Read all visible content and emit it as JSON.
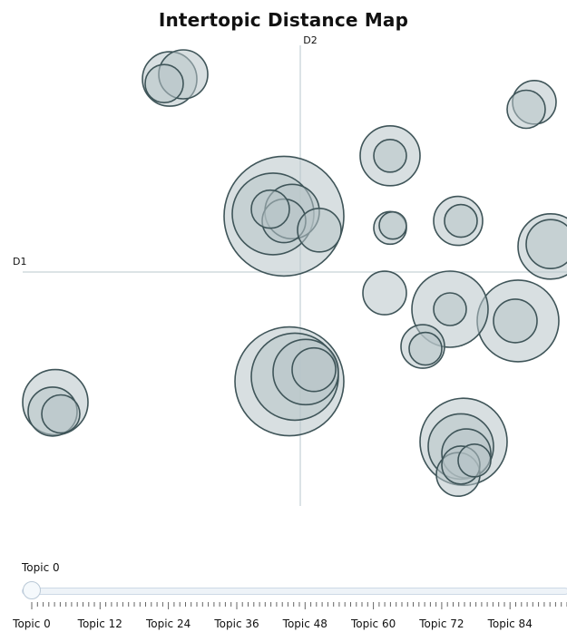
{
  "chart_data": {
    "type": "scatter",
    "title": "Intertopic Distance Map",
    "xlabel": "D1",
    "ylabel": "D2",
    "xlim": [
      -10,
      10
    ],
    "ylim": [
      -10,
      10
    ],
    "points": [
      {
        "x": -4.8,
        "y": 8.3,
        "r": 1.0
      },
      {
        "x": -4.3,
        "y": 8.5,
        "r": 0.9
      },
      {
        "x": -5.0,
        "y": 8.1,
        "r": 0.7
      },
      {
        "x": 8.6,
        "y": 7.3,
        "r": 0.8
      },
      {
        "x": 8.3,
        "y": 7.0,
        "r": 0.7
      },
      {
        "x": 3.3,
        "y": 5.0,
        "r": 1.1
      },
      {
        "x": 3.3,
        "y": 5.0,
        "r": 0.6
      },
      {
        "x": -0.6,
        "y": 2.4,
        "r": 2.2
      },
      {
        "x": -1.0,
        "y": 2.5,
        "r": 1.5
      },
      {
        "x": -0.3,
        "y": 2.6,
        "r": 1.0
      },
      {
        "x": -0.6,
        "y": 2.2,
        "r": 0.8
      },
      {
        "x": -1.1,
        "y": 2.7,
        "r": 0.7
      },
      {
        "x": 0.7,
        "y": 1.8,
        "r": 0.8
      },
      {
        "x": 3.3,
        "y": 1.9,
        "r": 0.6
      },
      {
        "x": 3.4,
        "y": 2.0,
        "r": 0.5
      },
      {
        "x": 5.8,
        "y": 2.2,
        "r": 0.9
      },
      {
        "x": 5.9,
        "y": 2.2,
        "r": 0.6
      },
      {
        "x": 9.2,
        "y": 1.1,
        "r": 1.2
      },
      {
        "x": 9.2,
        "y": 1.2,
        "r": 0.9
      },
      {
        "x": 3.1,
        "y": -0.9,
        "r": 0.8
      },
      {
        "x": 5.5,
        "y": -1.6,
        "r": 1.4
      },
      {
        "x": 5.5,
        "y": -1.6,
        "r": 0.6
      },
      {
        "x": 8.0,
        "y": -2.1,
        "r": 1.5
      },
      {
        "x": 7.9,
        "y": -2.1,
        "r": 0.8
      },
      {
        "x": 4.5,
        "y": -3.2,
        "r": 0.8
      },
      {
        "x": 4.6,
        "y": -3.3,
        "r": 0.6
      },
      {
        "x": -0.4,
        "y": -4.7,
        "r": 2.0
      },
      {
        "x": -0.2,
        "y": -4.5,
        "r": 1.6
      },
      {
        "x": 0.2,
        "y": -4.3,
        "r": 1.2
      },
      {
        "x": 0.5,
        "y": -4.2,
        "r": 0.8
      },
      {
        "x": -9.0,
        "y": -5.6,
        "r": 1.2
      },
      {
        "x": -9.1,
        "y": -6.0,
        "r": 0.9
      },
      {
        "x": -8.8,
        "y": -6.1,
        "r": 0.7
      },
      {
        "x": 6.0,
        "y": -7.3,
        "r": 1.6
      },
      {
        "x": 5.9,
        "y": -7.5,
        "r": 1.2
      },
      {
        "x": 6.1,
        "y": -7.8,
        "r": 0.9
      },
      {
        "x": 5.9,
        "y": -8.3,
        "r": 0.7
      },
      {
        "x": 5.8,
        "y": -8.7,
        "r": 0.8
      },
      {
        "x": 6.4,
        "y": -8.1,
        "r": 0.6
      }
    ]
  },
  "slider": {
    "label": "Topic 0",
    "value": 0,
    "max": 94,
    "tick_labels": [
      "Topic 0",
      "Topic 12",
      "Topic 24",
      "Topic 36",
      "Topic 48",
      "Topic 60",
      "Topic 72",
      "Topic 84"
    ]
  }
}
